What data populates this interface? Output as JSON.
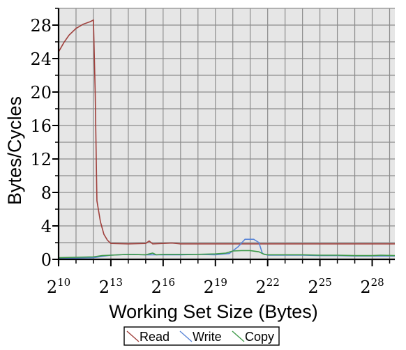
{
  "chart_data": {
    "type": "line",
    "xlabel": "Working Set Size (Bytes)",
    "ylabel": "Bytes/Cycles",
    "x_scale": "log2",
    "xlim_exponent": [
      10,
      29.3
    ],
    "ylim": [
      0,
      30
    ],
    "x_ticks": [
      {
        "base": "2",
        "exp": "10"
      },
      {
        "base": "2",
        "exp": "13"
      },
      {
        "base": "2",
        "exp": "16"
      },
      {
        "base": "2",
        "exp": "19"
      },
      {
        "base": "2",
        "exp": "22"
      },
      {
        "base": "2",
        "exp": "25"
      },
      {
        "base": "2",
        "exp": "28"
      }
    ],
    "y_ticks": [
      "0",
      "4",
      "8",
      "12",
      "16",
      "20",
      "24",
      "28"
    ],
    "grid": true,
    "legend": "bottom-center",
    "series": [
      {
        "name": "Read",
        "color": "#a0403c",
        "points": [
          [
            10,
            24.8
          ],
          [
            10.3,
            25.9
          ],
          [
            10.6,
            26.8
          ],
          [
            11,
            27.6
          ],
          [
            11.4,
            28.1
          ],
          [
            11.8,
            28.4
          ],
          [
            12,
            28.6
          ],
          [
            12.1,
            20
          ],
          [
            12.2,
            7
          ],
          [
            12.4,
            4.5
          ],
          [
            12.6,
            3
          ],
          [
            12.8,
            2.3
          ],
          [
            13,
            1.9
          ],
          [
            14,
            1.85
          ],
          [
            15,
            1.9
          ],
          [
            15.2,
            2.2
          ],
          [
            15.4,
            1.85
          ],
          [
            16,
            1.9
          ],
          [
            16.5,
            1.95
          ],
          [
            17,
            1.85
          ],
          [
            18,
            1.85
          ],
          [
            20,
            1.85
          ],
          [
            22,
            1.85
          ],
          [
            24,
            1.85
          ],
          [
            26,
            1.85
          ],
          [
            28,
            1.85
          ],
          [
            29.3,
            1.85
          ]
        ]
      },
      {
        "name": "Write",
        "color": "#5a86d8",
        "points": [
          [
            10,
            0.1
          ],
          [
            11,
            0.15
          ],
          [
            12,
            0.2
          ],
          [
            13,
            0.5
          ],
          [
            14,
            0.6
          ],
          [
            15,
            0.55
          ],
          [
            16,
            0.55
          ],
          [
            17,
            0.55
          ],
          [
            18,
            0.6
          ],
          [
            19,
            0.55
          ],
          [
            19.8,
            0.7
          ],
          [
            20.3,
            1.5
          ],
          [
            20.7,
            2.4
          ],
          [
            21.2,
            2.4
          ],
          [
            21.5,
            2.0
          ],
          [
            21.7,
            0.7
          ],
          [
            22,
            0.5
          ],
          [
            23,
            0.5
          ],
          [
            24,
            0.5
          ],
          [
            25,
            0.45
          ],
          [
            26,
            0.45
          ],
          [
            27,
            0.4
          ],
          [
            28,
            0.4
          ],
          [
            29.3,
            0.4
          ]
        ]
      },
      {
        "name": "Copy",
        "color": "#3f9a4a",
        "points": [
          [
            10,
            0.2
          ],
          [
            11,
            0.25
          ],
          [
            12,
            0.3
          ],
          [
            12.5,
            0.45
          ],
          [
            13,
            0.5
          ],
          [
            14,
            0.6
          ],
          [
            15,
            0.55
          ],
          [
            15.4,
            0.75
          ],
          [
            15.6,
            0.55
          ],
          [
            16,
            0.6
          ],
          [
            17,
            0.6
          ],
          [
            18,
            0.6
          ],
          [
            19,
            0.65
          ],
          [
            19.6,
            0.75
          ],
          [
            20,
            1.0
          ],
          [
            20.5,
            1.05
          ],
          [
            21,
            1.05
          ],
          [
            21.5,
            0.9
          ],
          [
            21.8,
            0.6
          ],
          [
            22,
            0.55
          ],
          [
            23,
            0.55
          ],
          [
            24,
            0.55
          ],
          [
            25,
            0.5
          ],
          [
            26,
            0.5
          ],
          [
            27,
            0.45
          ],
          [
            28,
            0.45
          ],
          [
            28.5,
            0.5
          ],
          [
            29.3,
            0.45
          ]
        ]
      }
    ]
  }
}
